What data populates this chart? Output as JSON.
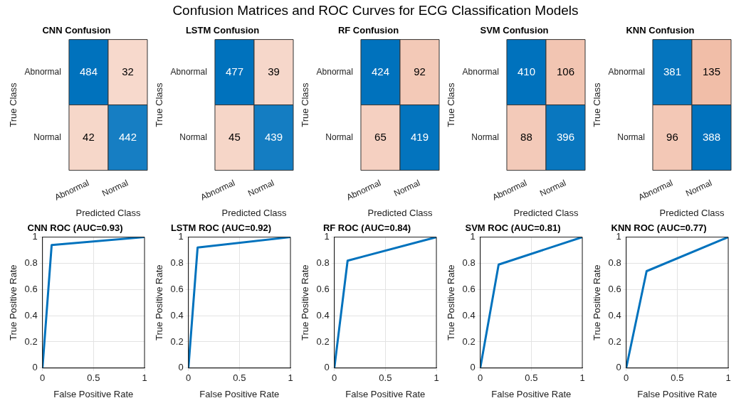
{
  "chart_data": [
    {
      "type": "other",
      "title": "Confusion Matrices and ROC Curves for ECG Classification Models"
    },
    {
      "type": "heatmap",
      "title": "CNN Confusion",
      "categories": [
        "Abnormal",
        "Normal"
      ],
      "y_categories": [
        "Abnormal",
        "Normal"
      ],
      "cells": [
        [
          484,
          32
        ],
        [
          42,
          442
        ]
      ],
      "xlabel": "Predicted Class",
      "ylabel": "True Class",
      "data_labels": true
    },
    {
      "type": "heatmap",
      "title": "LSTM Confusion",
      "categories": [
        "Abnormal",
        "Normal"
      ],
      "y_categories": [
        "Abnormal",
        "Normal"
      ],
      "cells": [
        [
          477,
          39
        ],
        [
          45,
          439
        ]
      ],
      "xlabel": "Predicted Class",
      "ylabel": "True Class",
      "data_labels": true
    },
    {
      "type": "heatmap",
      "title": "RF Confusion",
      "categories": [
        "Abnormal",
        "Normal"
      ],
      "y_categories": [
        "Abnormal",
        "Normal"
      ],
      "cells": [
        [
          424,
          92
        ],
        [
          65,
          419
        ]
      ],
      "xlabel": "Predicted Class",
      "ylabel": "True Class",
      "data_labels": true
    },
    {
      "type": "heatmap",
      "title": "SVM Confusion",
      "categories": [
        "Abnormal",
        "Normal"
      ],
      "y_categories": [
        "Abnormal",
        "Normal"
      ],
      "cells": [
        [
          410,
          106
        ],
        [
          88,
          396
        ]
      ],
      "xlabel": "Predicted Class",
      "ylabel": "True Class",
      "data_labels": true
    },
    {
      "type": "heatmap",
      "title": "KNN Confusion",
      "categories": [
        "Abnormal",
        "Normal"
      ],
      "y_categories": [
        "Abnormal",
        "Normal"
      ],
      "cells": [
        [
          381,
          135
        ],
        [
          96,
          388
        ]
      ],
      "xlabel": "Predicted Class",
      "ylabel": "True Class",
      "data_labels": true
    },
    {
      "type": "line",
      "title": "CNN ROC (AUC=0.93)",
      "x": [
        0,
        0.09,
        1
      ],
      "series": [
        {
          "color": "#0072bd",
          "values": [
            0,
            0.94,
            1
          ]
        }
      ],
      "xlim": [
        0,
        1
      ],
      "ylim": [
        0,
        1
      ],
      "xticks": [
        0,
        0.5,
        1
      ],
      "yticks": [
        0,
        0.2,
        0.4,
        0.6,
        0.8,
        1
      ],
      "xlabel": "False Positive Rate",
      "ylabel": "True Positive Rate",
      "grid": true
    },
    {
      "type": "line",
      "title": "LSTM ROC (AUC=0.92)",
      "x": [
        0,
        0.09,
        1
      ],
      "series": [
        {
          "color": "#0072bd",
          "values": [
            0,
            0.92,
            1
          ]
        }
      ],
      "xlim": [
        0,
        1
      ],
      "ylim": [
        0,
        1
      ],
      "xticks": [
        0,
        0.5,
        1
      ],
      "yticks": [
        0,
        0.2,
        0.4,
        0.6,
        0.8,
        1
      ],
      "xlabel": "False Positive Rate",
      "ylabel": "True Positive Rate",
      "grid": true
    },
    {
      "type": "line",
      "title": "RF ROC (AUC=0.84)",
      "x": [
        0,
        0.13,
        1
      ],
      "series": [
        {
          "color": "#0072bd",
          "values": [
            0,
            0.82,
            1
          ]
        }
      ],
      "xlim": [
        0,
        1
      ],
      "ylim": [
        0,
        1
      ],
      "xticks": [
        0,
        0.5,
        1
      ],
      "yticks": [
        0,
        0.2,
        0.4,
        0.6,
        0.8,
        1
      ],
      "xlabel": "False Positive Rate",
      "ylabel": "True Positive Rate",
      "grid": true
    },
    {
      "type": "line",
      "title": "SVM ROC (AUC=0.81)",
      "x": [
        0,
        0.18,
        1
      ],
      "series": [
        {
          "color": "#0072bd",
          "values": [
            0,
            0.79,
            1
          ]
        }
      ],
      "xlim": [
        0,
        1
      ],
      "ylim": [
        0,
        1
      ],
      "xticks": [
        0,
        0.5,
        1
      ],
      "yticks": [
        0,
        0.2,
        0.4,
        0.6,
        0.8,
        1
      ],
      "xlabel": "False Positive Rate",
      "ylabel": "True Positive Rate",
      "grid": true
    },
    {
      "type": "line",
      "title": "KNN ROC (AUC=0.77)",
      "x": [
        0,
        0.2,
        1
      ],
      "series": [
        {
          "color": "#0072bd",
          "values": [
            0,
            0.74,
            1
          ]
        }
      ],
      "xlim": [
        0,
        1
      ],
      "ylim": [
        0,
        1
      ],
      "xticks": [
        0,
        0.5,
        1
      ],
      "yticks": [
        0,
        0.2,
        0.4,
        0.6,
        0.8,
        1
      ],
      "xlabel": "False Positive Rate",
      "ylabel": "True Positive Rate",
      "grid": true
    }
  ]
}
